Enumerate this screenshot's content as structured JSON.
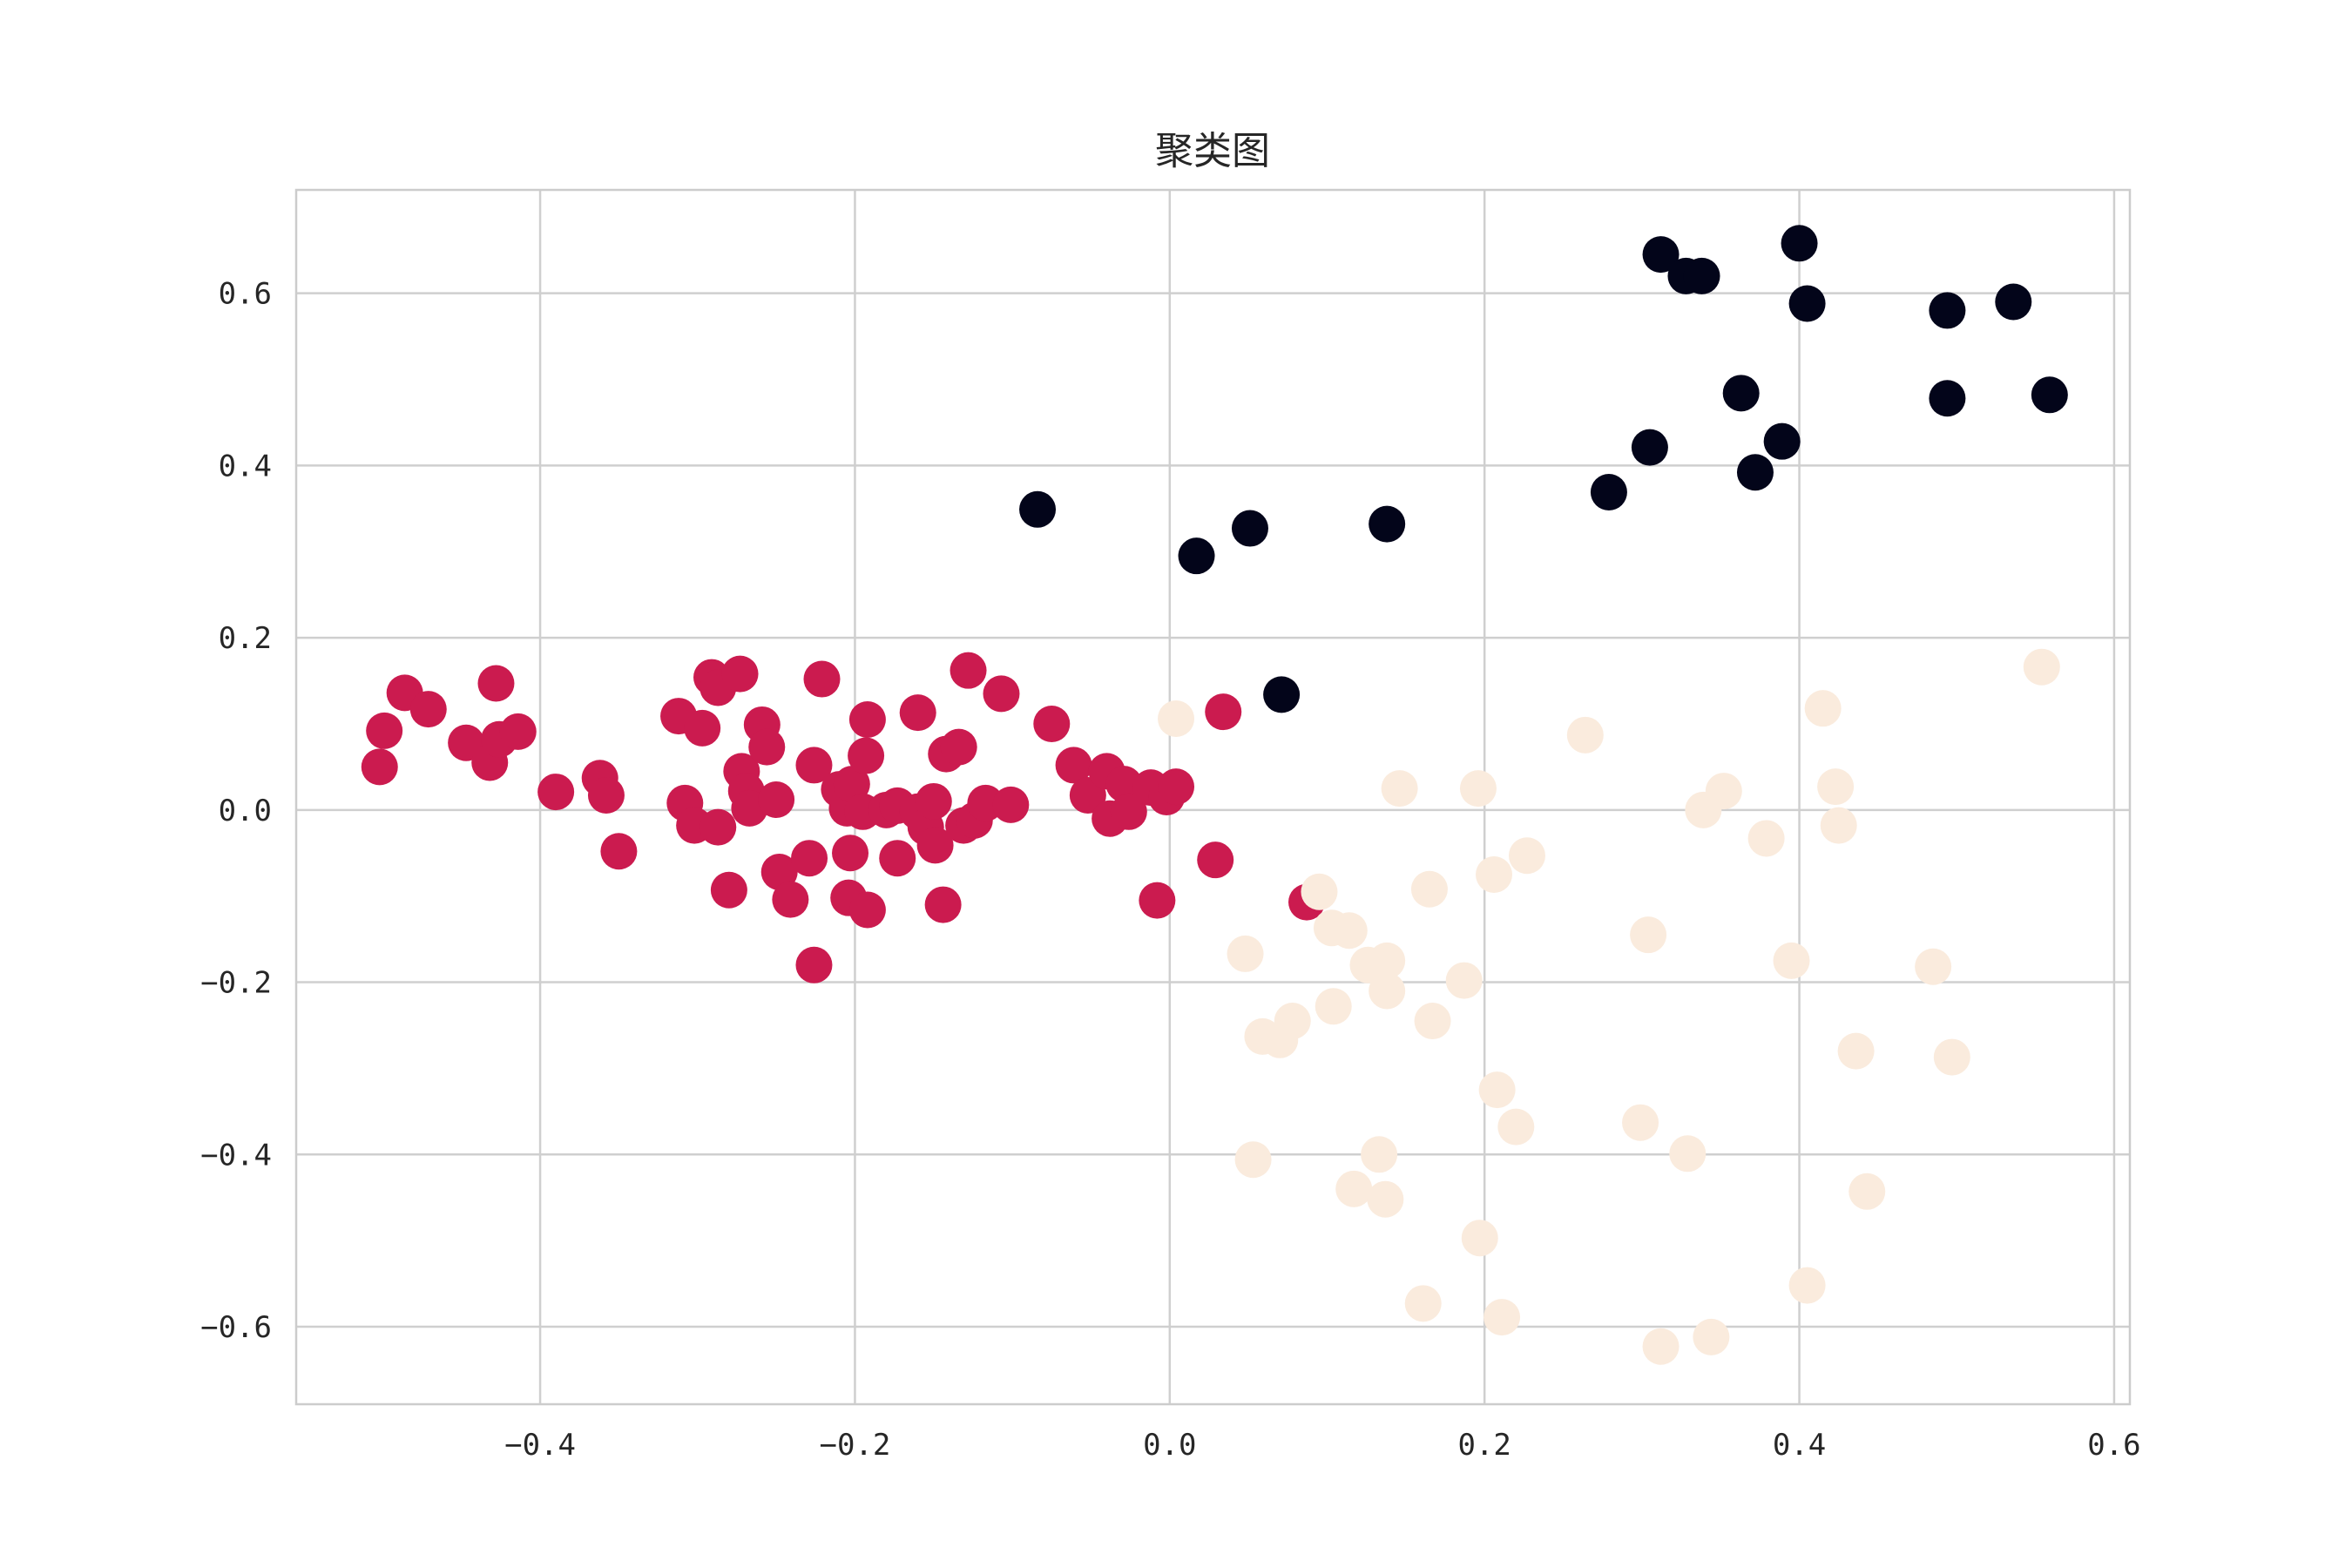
{
  "chart_data": {
    "type": "scatter",
    "title": "聚类图",
    "xlabel": "",
    "ylabel": "",
    "xlim": [
      -0.555,
      0.61
    ],
    "ylim": [
      -0.69,
      0.72
    ],
    "grid": true,
    "x_ticks": [
      -0.4,
      -0.2,
      0.0,
      0.2,
      0.4,
      0.6
    ],
    "x_tick_labels": [
      "−0.4",
      "−0.2",
      "0.0",
      "0.2",
      "0.4",
      "0.6"
    ],
    "y_ticks": [
      0.6,
      0.4,
      0.2,
      0.0,
      -0.2,
      -0.4,
      -0.6
    ],
    "y_tick_labels": [
      "0.6",
      "0.4",
      "0.2",
      "0.0",
      "−0.2",
      "−0.4",
      "−0.6"
    ],
    "colors": [
      "#03051a",
      "#cb1b4f",
      "#faebdd"
    ],
    "series": [
      {
        "points": [
          [
            0.312,
            0.645
          ],
          [
            0.328,
            0.62
          ],
          [
            0.338,
            0.62
          ],
          [
            0.4,
            0.658
          ],
          [
            0.405,
            0.588
          ],
          [
            0.494,
            0.58
          ],
          [
            0.536,
            0.59
          ],
          [
            0.494,
            0.478
          ],
          [
            0.559,
            0.482
          ],
          [
            0.363,
            0.484
          ],
          [
            0.389,
            0.428
          ],
          [
            0.372,
            0.392
          ],
          [
            0.305,
            0.421
          ],
          [
            0.279,
            0.369
          ],
          [
            0.138,
            0.332
          ],
          [
            0.051,
            0.327
          ],
          [
            0.017,
            0.295
          ],
          [
            -0.084,
            0.349
          ],
          [
            0.071,
            0.134
          ]
        ]
      },
      {
        "points": [
          [
            -0.502,
            0.05
          ],
          [
            -0.499,
            0.092
          ],
          [
            -0.486,
            0.136
          ],
          [
            -0.471,
            0.117
          ],
          [
            -0.447,
            0.078
          ],
          [
            -0.428,
            0.147
          ],
          [
            -0.432,
            0.055
          ],
          [
            -0.426,
            0.082
          ],
          [
            -0.414,
            0.091
          ],
          [
            -0.39,
            0.021
          ],
          [
            -0.362,
            0.037
          ],
          [
            -0.358,
            0.017
          ],
          [
            -0.35,
            -0.048
          ],
          [
            -0.312,
            0.109
          ],
          [
            -0.308,
            0.008
          ],
          [
            -0.302,
            -0.018
          ],
          [
            -0.297,
            0.095
          ],
          [
            -0.291,
            0.154
          ],
          [
            -0.287,
            0.142
          ],
          [
            -0.287,
            -0.02
          ],
          [
            -0.28,
            -0.093
          ],
          [
            -0.273,
            0.158
          ],
          [
            -0.272,
            0.045
          ],
          [
            -0.269,
            0.022
          ],
          [
            -0.267,
            0.002
          ],
          [
            -0.259,
            0.099
          ],
          [
            -0.256,
            0.073
          ],
          [
            -0.25,
            0.012
          ],
          [
            -0.248,
            -0.072
          ],
          [
            -0.241,
            -0.104
          ],
          [
            -0.229,
            -0.056
          ],
          [
            -0.226,
            0.052
          ],
          [
            -0.221,
            0.152
          ],
          [
            -0.226,
            -0.18
          ],
          [
            -0.21,
            0.024
          ],
          [
            -0.205,
            0.002
          ],
          [
            -0.204,
            -0.102
          ],
          [
            -0.203,
            -0.05
          ],
          [
            -0.202,
            0.03
          ],
          [
            -0.195,
            -0.002
          ],
          [
            -0.193,
            0.063
          ],
          [
            -0.192,
            -0.116
          ],
          [
            -0.192,
            0.105
          ],
          [
            -0.18,
            0.0
          ],
          [
            -0.173,
            0.005
          ],
          [
            -0.173,
            -0.056
          ],
          [
            -0.16,
            0.113
          ],
          [
            -0.16,
            -0.002
          ],
          [
            -0.155,
            -0.02
          ],
          [
            -0.15,
            0.01
          ],
          [
            -0.149,
            -0.041
          ],
          [
            -0.144,
            -0.11
          ],
          [
            -0.142,
            0.065
          ],
          [
            -0.134,
            0.073
          ],
          [
            -0.131,
            -0.018
          ],
          [
            -0.128,
            0.162
          ],
          [
            -0.124,
            -0.012
          ],
          [
            -0.117,
            0.008
          ],
          [
            -0.107,
            0.135
          ],
          [
            -0.101,
            0.006
          ],
          [
            -0.075,
            0.1
          ],
          [
            -0.061,
            0.052
          ],
          [
            -0.052,
            0.017
          ],
          [
            -0.04,
            0.045
          ],
          [
            -0.038,
            -0.01
          ],
          [
            -0.029,
            0.03
          ],
          [
            -0.026,
            -0.002
          ],
          [
            -0.012,
            0.026
          ],
          [
            -0.008,
            -0.105
          ],
          [
            -0.002,
            0.015
          ],
          [
            0.004,
            0.027
          ],
          [
            0.029,
            -0.058
          ],
          [
            0.034,
            0.114
          ],
          [
            0.087,
            -0.107
          ]
        ]
      },
      {
        "points": [
          [
            0.004,
            0.106
          ],
          [
            0.095,
            -0.095
          ],
          [
            0.103,
            -0.137
          ],
          [
            0.114,
            -0.14
          ],
          [
            0.126,
            -0.18
          ],
          [
            0.138,
            -0.175
          ],
          [
            0.138,
            -0.21
          ],
          [
            0.048,
            -0.167
          ],
          [
            0.059,
            -0.263
          ],
          [
            0.07,
            -0.267
          ],
          [
            0.078,
            -0.245
          ],
          [
            0.104,
            -0.228
          ],
          [
            0.146,
            0.025
          ],
          [
            0.165,
            -0.092
          ],
          [
            0.167,
            -0.245
          ],
          [
            0.187,
            -0.198
          ],
          [
            0.196,
            0.025
          ],
          [
            0.206,
            -0.075
          ],
          [
            0.227,
            -0.053
          ],
          [
            0.208,
            -0.325
          ],
          [
            0.22,
            -0.368
          ],
          [
            0.053,
            -0.406
          ],
          [
            0.133,
            -0.4
          ],
          [
            0.117,
            -0.44
          ],
          [
            0.137,
            -0.452
          ],
          [
            0.197,
            -0.497
          ],
          [
            0.161,
            -0.573
          ],
          [
            0.211,
            -0.589
          ],
          [
            0.264,
            0.087
          ],
          [
            0.304,
            -0.145
          ],
          [
            0.299,
            -0.363
          ],
          [
            0.329,
            -0.399
          ],
          [
            0.312,
            -0.623
          ],
          [
            0.344,
            -0.612
          ],
          [
            0.339,
            0.0
          ],
          [
            0.352,
            0.022
          ],
          [
            0.379,
            -0.033
          ],
          [
            0.395,
            -0.175
          ],
          [
            0.405,
            -0.552
          ],
          [
            0.415,
            0.118
          ],
          [
            0.423,
            0.027
          ],
          [
            0.425,
            -0.018
          ],
          [
            0.436,
            -0.28
          ],
          [
            0.443,
            -0.443
          ],
          [
            0.485,
            -0.182
          ],
          [
            0.497,
            -0.287
          ],
          [
            0.554,
            0.166
          ]
        ]
      }
    ]
  }
}
